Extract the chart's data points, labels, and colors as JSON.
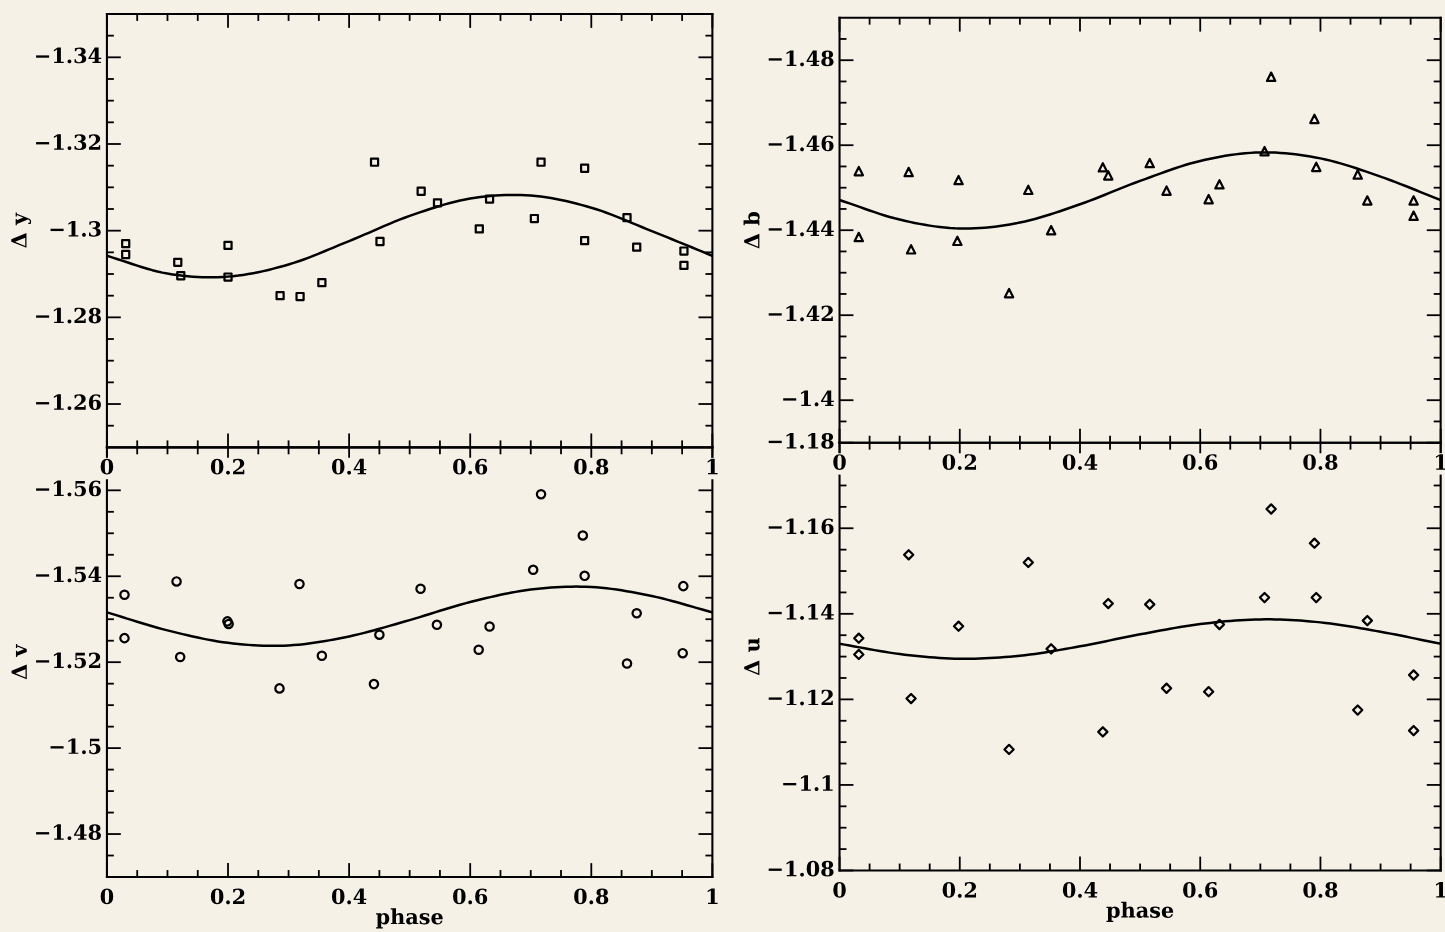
{
  "chart_data": [
    {
      "type": "scatter",
      "ylabel": "Δ y",
      "xlim": [
        0,
        1
      ],
      "ylim": [
        -1.25,
        -1.35
      ],
      "xticks": [
        0,
        {
          "value": 0.05,
          "label": null
        },
        {
          "value": 0.1,
          "label": null
        },
        {
          "value": 0.15,
          "label": null
        },
        0.2,
        {
          "value": 0.25,
          "label": null
        },
        {
          "value": 0.3,
          "label": null
        },
        {
          "value": 0.35,
          "label": null
        },
        0.4,
        {
          "value": 0.45,
          "label": null
        },
        {
          "value": 0.5,
          "label": null
        },
        {
          "value": 0.55,
          "label": null
        },
        0.6,
        {
          "value": 0.65,
          "label": null
        },
        {
          "value": 0.7,
          "label": null
        },
        {
          "value": 0.75,
          "label": null
        },
        0.8,
        {
          "value": 0.85,
          "label": null
        },
        {
          "value": 0.9,
          "label": null
        },
        {
          "value": 0.95,
          "label": null
        },
        1
      ],
      "yticks": [
        {
          "value": -1.345,
          "label": null
        },
        {
          "value": -1.34,
          "label": "−1.34"
        },
        {
          "value": -1.335,
          "label": null
        },
        {
          "value": -1.33,
          "label": null
        },
        {
          "value": -1.325,
          "label": null
        },
        {
          "value": -1.32,
          "label": "−1.32"
        },
        {
          "value": -1.315,
          "label": null
        },
        {
          "value": -1.31,
          "label": null
        },
        {
          "value": -1.305,
          "label": null
        },
        {
          "value": -1.3,
          "label": "−1.3"
        },
        {
          "value": -1.295,
          "label": null
        },
        {
          "value": -1.29,
          "label": null
        },
        {
          "value": -1.285,
          "label": null
        },
        {
          "value": -1.28,
          "label": "−1.28"
        },
        {
          "value": -1.275,
          "label": null
        },
        {
          "value": -1.27,
          "label": null
        },
        {
          "value": -1.265,
          "label": null
        },
        {
          "value": -1.26,
          "label": "−1.26"
        },
        {
          "value": -1.255,
          "label": null
        }
      ],
      "series": [
        {
          "type": "scatter",
          "marker": "square",
          "color": "#000000",
          "x": [
            0.031,
            0.031,
            0.117,
            0.122,
            0.2,
            0.2,
            0.286,
            0.319,
            0.355,
            0.442,
            0.451,
            0.519,
            0.546,
            0.615,
            0.632,
            0.706,
            0.717,
            0.789,
            0.789,
            0.859,
            0.875,
            0.953,
            0.953
          ],
          "values": [
            -1.297,
            -1.2945,
            -1.2927,
            -1.2896,
            -1.2966,
            -1.2893,
            -1.285,
            -1.2848,
            -1.288,
            -1.3158,
            -1.2975,
            -1.3091,
            -1.3064,
            -1.3004,
            -1.3073,
            -1.3028,
            -1.3158,
            -1.3144,
            -1.2977,
            -1.303,
            -1.2962,
            -1.2953,
            -1.292
          ]
        },
        {
          "type": "line",
          "color": "#000000",
          "x": [
            0,
            0.1,
            0.2,
            0.3,
            0.4,
            0.5,
            0.6,
            0.7,
            0.8,
            0.9,
            1
          ],
          "values": [
            -1.2942,
            -1.2901,
            -1.2894,
            -1.2922,
            -1.2976,
            -1.3034,
            -1.3074,
            -1.3081,
            -1.3053,
            -1.2999,
            -1.2942
          ]
        }
      ]
    },
    {
      "type": "scatter",
      "ylabel": "Δ b",
      "xlim": [
        0,
        1
      ],
      "ylim": [
        -1.39,
        -1.49
      ],
      "xticks": [
        0,
        {
          "value": 0.05,
          "label": null
        },
        {
          "value": 0.1,
          "label": null
        },
        {
          "value": 0.15,
          "label": null
        },
        0.2,
        {
          "value": 0.25,
          "label": null
        },
        {
          "value": 0.3,
          "label": null
        },
        {
          "value": 0.35,
          "label": null
        },
        0.4,
        {
          "value": 0.45,
          "label": null
        },
        {
          "value": 0.5,
          "label": null
        },
        {
          "value": 0.55,
          "label": null
        },
        0.6,
        {
          "value": 0.65,
          "label": null
        },
        {
          "value": 0.7,
          "label": null
        },
        {
          "value": 0.75,
          "label": null
        },
        0.8,
        {
          "value": 0.85,
          "label": null
        },
        {
          "value": 0.9,
          "label": null
        },
        {
          "value": 0.95,
          "label": null
        },
        1
      ],
      "yticks": [
        {
          "value": -1.485,
          "label": null
        },
        {
          "value": -1.48,
          "label": "−1.48"
        },
        {
          "value": -1.475,
          "label": null
        },
        {
          "value": -1.47,
          "label": null
        },
        {
          "value": -1.465,
          "label": null
        },
        {
          "value": -1.46,
          "label": "−1.46"
        },
        {
          "value": -1.455,
          "label": null
        },
        {
          "value": -1.45,
          "label": null
        },
        {
          "value": -1.445,
          "label": null
        },
        {
          "value": -1.44,
          "label": "−1.44"
        },
        {
          "value": -1.435,
          "label": null
        },
        {
          "value": -1.43,
          "label": null
        },
        {
          "value": -1.425,
          "label": null
        },
        {
          "value": -1.42,
          "label": "−1.42"
        },
        {
          "value": -1.415,
          "label": null
        },
        {
          "value": -1.41,
          "label": null
        },
        {
          "value": -1.405,
          "label": null
        },
        {
          "value": -1.4,
          "label": "−1.4"
        },
        {
          "value": -1.395,
          "label": null
        }
      ],
      "series": [
        {
          "type": "scatter",
          "marker": "triangle",
          "color": "#000000",
          "x": [
            0.032,
            0.032,
            0.115,
            0.119,
            0.198,
            0.196,
            0.282,
            0.314,
            0.352,
            0.438,
            0.447,
            0.516,
            0.544,
            0.614,
            0.632,
            0.707,
            0.718,
            0.79,
            0.793,
            0.862,
            0.878,
            0.955,
            0.955
          ],
          "values": [
            -1.4539,
            -1.4384,
            -1.4537,
            -1.4355,
            -1.4518,
            -1.4375,
            -1.4252,
            -1.4495,
            -1.44,
            -1.4548,
            -1.4529,
            -1.4558,
            -1.4493,
            -1.4473,
            -1.4508,
            -1.4586,
            -1.4761,
            -1.4662,
            -1.4549,
            -1.4531,
            -1.447,
            -1.447,
            -1.4434
          ]
        },
        {
          "type": "line",
          "color": "#000000",
          "x": [
            0,
            0.1,
            0.2,
            0.3,
            0.4,
            0.5,
            0.6,
            0.7,
            0.8,
            0.9,
            1
          ],
          "values": [
            -1.4471,
            -1.4425,
            -1.4404,
            -1.4418,
            -1.4461,
            -1.4516,
            -1.4563,
            -1.4583,
            -1.4569,
            -1.4526,
            -1.4471
          ]
        }
      ]
    },
    {
      "type": "scatter",
      "xlabel": "phase",
      "ylabel": "Δ v",
      "xlim": [
        0,
        1
      ],
      "ylim": [
        -1.47,
        -1.57
      ],
      "xticks": [
        0,
        {
          "value": 0.05,
          "label": null
        },
        {
          "value": 0.1,
          "label": null
        },
        {
          "value": 0.15,
          "label": null
        },
        0.2,
        {
          "value": 0.25,
          "label": null
        },
        {
          "value": 0.3,
          "label": null
        },
        {
          "value": 0.35,
          "label": null
        },
        0.4,
        {
          "value": 0.45,
          "label": null
        },
        {
          "value": 0.5,
          "label": null
        },
        {
          "value": 0.55,
          "label": null
        },
        0.6,
        {
          "value": 0.65,
          "label": null
        },
        {
          "value": 0.7,
          "label": null
        },
        {
          "value": 0.75,
          "label": null
        },
        0.8,
        {
          "value": 0.85,
          "label": null
        },
        {
          "value": 0.9,
          "label": null
        },
        {
          "value": 0.95,
          "label": null
        },
        1
      ],
      "yticks": [
        {
          "value": -1.565,
          "label": null
        },
        {
          "value": -1.56,
          "label": "−1.56"
        },
        {
          "value": -1.555,
          "label": null
        },
        {
          "value": -1.55,
          "label": null
        },
        {
          "value": -1.545,
          "label": null
        },
        {
          "value": -1.54,
          "label": "−1.54"
        },
        {
          "value": -1.535,
          "label": null
        },
        {
          "value": -1.53,
          "label": null
        },
        {
          "value": -1.525,
          "label": null
        },
        {
          "value": -1.52,
          "label": "−1.52"
        },
        {
          "value": -1.515,
          "label": null
        },
        {
          "value": -1.51,
          "label": null
        },
        {
          "value": -1.505,
          "label": null
        },
        {
          "value": -1.5,
          "label": "−1.5"
        },
        {
          "value": -1.495,
          "label": null
        },
        {
          "value": -1.49,
          "label": null
        },
        {
          "value": -1.485,
          "label": null
        },
        {
          "value": -1.48,
          "label": "−1.48"
        },
        {
          "value": -1.475,
          "label": null
        }
      ],
      "series": [
        {
          "type": "scatter",
          "marker": "circle",
          "color": "#000000",
          "x": [
            0.029,
            0.029,
            0.115,
            0.121,
            0.199,
            0.201,
            0.285,
            0.318,
            0.355,
            0.441,
            0.45,
            0.518,
            0.545,
            0.614,
            0.632,
            0.704,
            0.717,
            0.786,
            0.789,
            0.859,
            0.875,
            0.951,
            0.952
          ],
          "values": [
            -1.5357,
            -1.5256,
            -1.5388,
            -1.5212,
            -1.5295,
            -1.5289,
            -1.5139,
            -1.5382,
            -1.5215,
            -1.5149,
            -1.5264,
            -1.5371,
            -1.5287,
            -1.5229,
            -1.5283,
            -1.5415,
            -1.5591,
            -1.5495,
            -1.5401,
            -1.5197,
            -1.5314,
            -1.5221,
            -1.5377
          ]
        },
        {
          "type": "line",
          "color": "#000000",
          "x": [
            0,
            0.1,
            0.2,
            0.3,
            0.4,
            0.5,
            0.6,
            0.7,
            0.8,
            0.9,
            1
          ],
          "values": [
            -1.5316,
            -1.5274,
            -1.5245,
            -1.5239,
            -1.526,
            -1.5298,
            -1.534,
            -1.5369,
            -1.5375,
            -1.5354,
            -1.5316
          ]
        }
      ]
    },
    {
      "type": "scatter",
      "xlabel": "phase",
      "ylabel": "Δ u",
      "xlim": [
        0,
        1
      ],
      "ylim": [
        -1.08,
        -1.18
      ],
      "xticks": [
        0,
        {
          "value": 0.05,
          "label": null
        },
        {
          "value": 0.1,
          "label": null
        },
        {
          "value": 0.15,
          "label": null
        },
        0.2,
        {
          "value": 0.25,
          "label": null
        },
        {
          "value": 0.3,
          "label": null
        },
        {
          "value": 0.35,
          "label": null
        },
        0.4,
        {
          "value": 0.45,
          "label": null
        },
        {
          "value": 0.5,
          "label": null
        },
        {
          "value": 0.55,
          "label": null
        },
        0.6,
        {
          "value": 0.65,
          "label": null
        },
        {
          "value": 0.7,
          "label": null
        },
        {
          "value": 0.75,
          "label": null
        },
        0.8,
        {
          "value": 0.85,
          "label": null
        },
        {
          "value": 0.9,
          "label": null
        },
        {
          "value": 0.95,
          "label": null
        },
        1
      ],
      "yticks": [
        {
          "value": -1.18,
          "label": "−1.18"
        },
        {
          "value": -1.175,
          "label": null
        },
        {
          "value": -1.17,
          "label": null
        },
        {
          "value": -1.165,
          "label": null
        },
        {
          "value": -1.16,
          "label": "−1.16"
        },
        {
          "value": -1.155,
          "label": null
        },
        {
          "value": -1.15,
          "label": null
        },
        {
          "value": -1.145,
          "label": null
        },
        {
          "value": -1.14,
          "label": "−1.14"
        },
        {
          "value": -1.135,
          "label": null
        },
        {
          "value": -1.13,
          "label": null
        },
        {
          "value": -1.125,
          "label": null
        },
        {
          "value": -1.12,
          "label": "−1.12"
        },
        {
          "value": -1.115,
          "label": null
        },
        {
          "value": -1.11,
          "label": null
        },
        {
          "value": -1.105,
          "label": null
        },
        {
          "value": -1.1,
          "label": "−1.1"
        },
        {
          "value": -1.095,
          "label": null
        },
        {
          "value": -1.09,
          "label": null
        },
        {
          "value": -1.085,
          "label": null
        },
        {
          "value": -1.08,
          "label": "−1.08"
        }
      ],
      "series": [
        {
          "type": "scatter",
          "marker": "diamond",
          "color": "#000000",
          "x": [
            0.032,
            0.032,
            0.115,
            0.119,
            0.198,
            0.282,
            0.314,
            0.352,
            0.438,
            0.447,
            0.516,
            0.544,
            0.614,
            0.632,
            0.707,
            0.718,
            0.79,
            0.793,
            0.862,
            0.878,
            0.955,
            0.955
          ],
          "values": [
            -1.1343,
            -1.1305,
            -1.1538,
            -1.1202,
            -1.1371,
            -1.1083,
            -1.152,
            -1.1318,
            -1.1124,
            -1.1424,
            -1.1422,
            -1.1226,
            -1.1218,
            -1.1375,
            -1.1438,
            -1.1645,
            -1.1565,
            -1.1438,
            -1.1175,
            -1.1384,
            -1.1257,
            -1.1127
          ]
        },
        {
          "type": "line",
          "color": "#000000",
          "x": [
            0,
            0.1,
            0.2,
            0.3,
            0.4,
            0.5,
            0.6,
            0.7,
            0.8,
            0.9,
            1
          ],
          "values": [
            -1.133,
            -1.1306,
            -1.1295,
            -1.1302,
            -1.1324,
            -1.1352,
            -1.1376,
            -1.1387,
            -1.138,
            -1.1358,
            -1.133
          ]
        }
      ]
    }
  ]
}
